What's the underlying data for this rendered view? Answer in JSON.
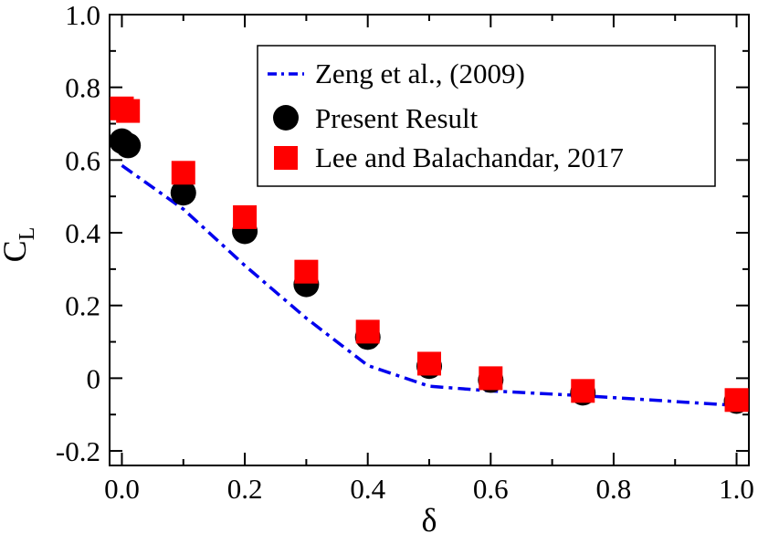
{
  "chart_data": {
    "type": "scatter",
    "title": "",
    "xlabel": "δ",
    "ylabel": {
      "main": "C",
      "subscript": "L"
    },
    "xlim": [
      -0.02,
      1.02
    ],
    "ylim": [
      -0.24,
      1.0
    ],
    "x_ticks": [
      0.0,
      0.2,
      0.4,
      0.6,
      0.8,
      1.0
    ],
    "x_tick_labels": [
      "0.0",
      "0.2",
      "0.4",
      "0.6",
      "0.8",
      "1.0"
    ],
    "y_ticks": [
      -0.2,
      0,
      0.2,
      0.4,
      0.6,
      0.8,
      1.0
    ],
    "y_tick_labels": [
      "-0.2",
      "0",
      "0.2",
      "0.4",
      "0.6",
      "0.8",
      "1.0"
    ],
    "grid": false,
    "legend_position": "top-right",
    "series": [
      {
        "name": "Zeng et al., (2009)",
        "kind": "line",
        "style": "dash-dot",
        "color": "#0000ee",
        "x": [
          0.0,
          0.1,
          0.2,
          0.3,
          0.4,
          0.5,
          0.6,
          0.75,
          1.0
        ],
        "y": [
          0.585,
          0.465,
          0.31,
          0.165,
          0.035,
          -0.022,
          -0.035,
          -0.048,
          -0.075
        ]
      },
      {
        "name": "Present Result",
        "kind": "marker",
        "marker": "circle",
        "color": "#000000",
        "x": [
          0.0,
          0.01,
          0.1,
          0.2,
          0.3,
          0.4,
          0.5,
          0.6,
          0.75,
          1.0
        ],
        "y": [
          0.652,
          0.64,
          0.51,
          0.404,
          0.258,
          0.113,
          0.033,
          -0.005,
          -0.04,
          -0.063
        ]
      },
      {
        "name": "Lee and Balachandar, 2017",
        "kind": "marker",
        "marker": "square",
        "color": "#ff0000",
        "x": [
          0.0,
          0.01,
          0.1,
          0.2,
          0.3,
          0.4,
          0.5,
          0.6,
          0.75,
          1.0
        ],
        "y": [
          0.742,
          0.735,
          0.565,
          0.443,
          0.293,
          0.128,
          0.04,
          0.0,
          -0.035,
          -0.06
        ]
      }
    ]
  }
}
